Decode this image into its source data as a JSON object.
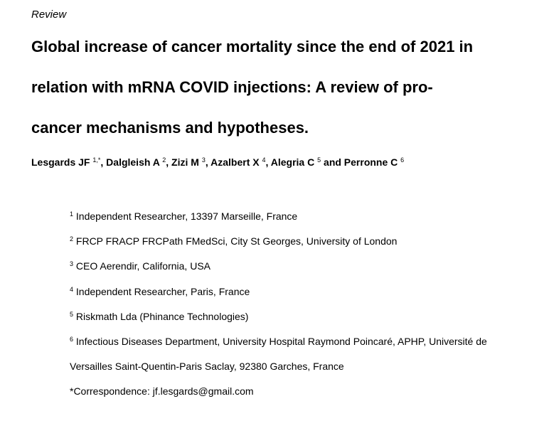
{
  "label": "Review",
  "title": [
    "Global increase of cancer mortality since the end of 2021 in",
    "relation with mRNA COVID injections: A review of pro-",
    "cancer mechanisms and hypotheses."
  ],
  "authors": [
    {
      "text": "Lesgards JF ",
      "sup": "1,*"
    },
    {
      "text": ", Dalgleish A ",
      "sup": "2"
    },
    {
      "text": ", Zizi M ",
      "sup": "3"
    },
    {
      "text": ", Azalbert X ",
      "sup": "4"
    },
    {
      "text": ", Alegria C ",
      "sup": "5"
    },
    {
      "text": " and Perronne C ",
      "sup": "6"
    }
  ],
  "affiliations": [
    {
      "num": "1",
      "lines": [
        "Independent Researcher, 13397 Marseille, France"
      ]
    },
    {
      "num": "2",
      "lines": [
        "FRCP FRACP FRCPath FMedSci, City St Georges, University of London"
      ]
    },
    {
      "num": "3",
      "lines": [
        "CEO Aerendir, California, USA"
      ]
    },
    {
      "num": "4",
      "lines": [
        "Independent Researcher, Paris, France"
      ]
    },
    {
      "num": "5",
      "lines": [
        "Riskmath Lda (Phinance Technologies)"
      ]
    },
    {
      "num": "6",
      "lines": [
        "Infectious Diseases Department, University Hospital Raymond Poincaré, APHP, Université de",
        "Versailles Saint-Quentin-Paris Saclay, 92380 Garches, France"
      ]
    }
  ],
  "correspondence": "*Correspondence: jf.lesgards@gmail.com"
}
